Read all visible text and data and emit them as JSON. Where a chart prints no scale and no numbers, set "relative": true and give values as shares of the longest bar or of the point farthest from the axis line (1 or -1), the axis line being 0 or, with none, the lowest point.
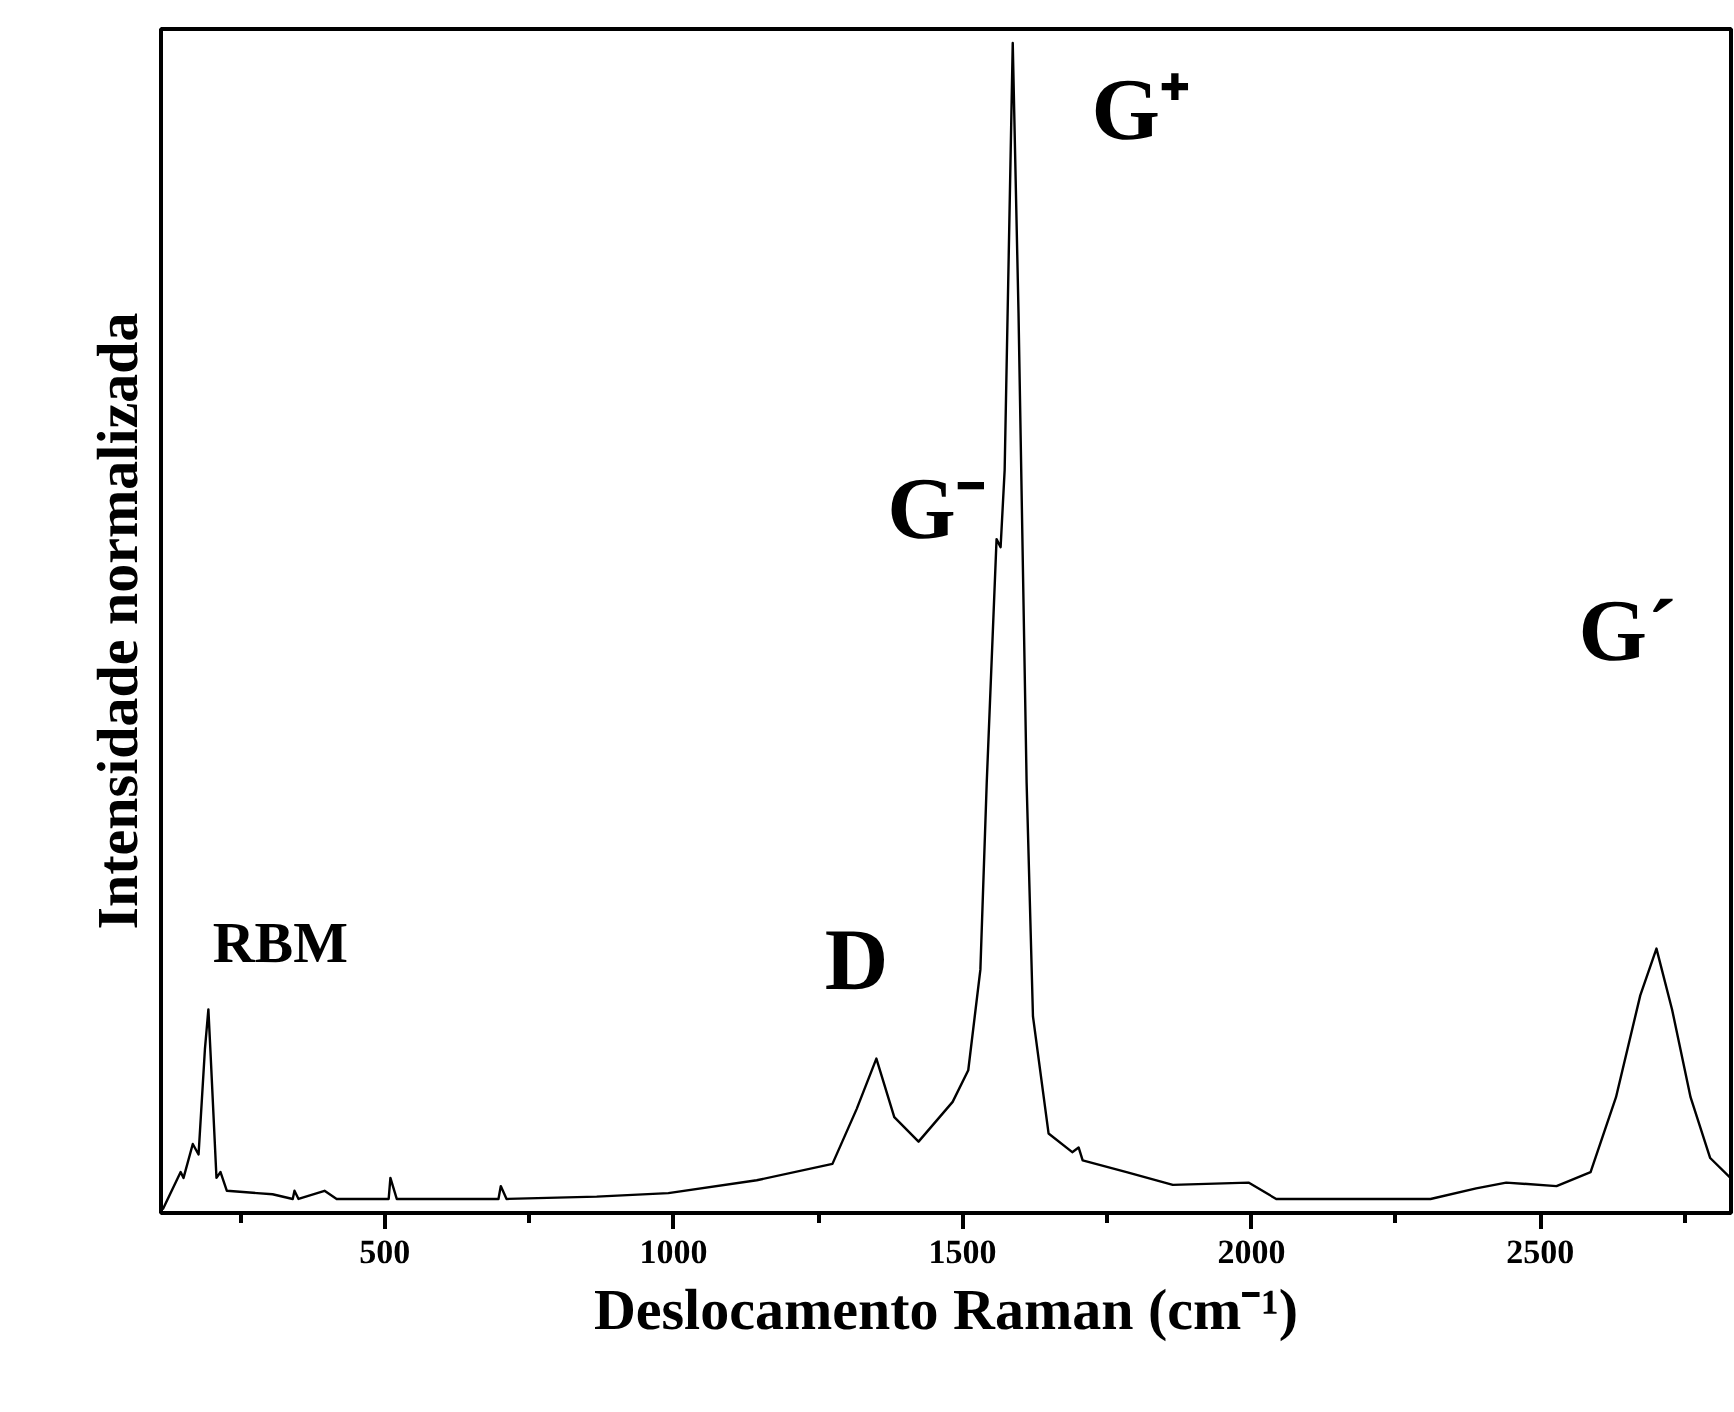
{
  "chart_data": {
    "type": "line",
    "xlabel": "Deslocamento Raman (cm⁻¹)",
    "ylabel": "Intensidade normalizada",
    "relative": true,
    "xlim": [
      113,
      2830
    ],
    "xticks": [
      {
        "value": 250,
        "label": null
      },
      500,
      {
        "value": 750,
        "label": null
      },
      1000,
      {
        "value": 1250,
        "label": null
      },
      1500,
      {
        "value": 1750,
        "label": null
      },
      2000,
      {
        "value": 2250,
        "label": null
      },
      2500,
      {
        "value": 2750,
        "label": null
      }
    ],
    "grid": false,
    "marker": "none",
    "line_style": "solid",
    "series": [
      {
        "color": "#000000",
        "x": [
          116,
          147,
          152,
          168,
          178,
          189,
          195,
          199,
          209,
          216,
          227,
          279,
          306,
          341,
          344,
          351,
          396,
          417,
          507,
          510,
          521,
          697,
          701,
          711,
          867,
          991,
          1144,
          1275,
          1317,
          1351,
          1382,
          1424,
          1483,
          1510,
          1531,
          1542,
          1559,
          1566,
          1573,
          1587,
          1597,
          1611,
          1622,
          1649,
          1690,
          1701,
          1708,
          1784,
          1864,
          1995,
          2043,
          2310,
          2389,
          2441,
          2528,
          2587,
          2631,
          2673,
          2701,
          2728,
          2760,
          2794,
          2829
        ],
        "values": [
          0.003,
          0.035,
          0.03,
          0.059,
          0.05,
          0.14,
          0.174,
          0.134,
          0.03,
          0.035,
          0.019,
          0.017,
          0.016,
          0.012,
          0.019,
          0.012,
          0.019,
          0.012,
          0.012,
          0.03,
          0.012,
          0.012,
          0.023,
          0.012,
          0.014,
          0.017,
          0.028,
          0.042,
          0.089,
          0.132,
          0.082,
          0.061,
          0.095,
          0.122,
          0.208,
          0.368,
          0.576,
          0.569,
          0.635,
          1.0,
          0.769,
          0.368,
          0.168,
          0.068,
          0.052,
          0.056,
          0.045,
          0.035,
          0.024,
          0.026,
          0.012,
          0.012,
          0.021,
          0.026,
          0.023,
          0.035,
          0.099,
          0.186,
          0.226,
          0.174,
          0.099,
          0.047,
          0.03
        ]
      }
    ],
    "annotations": [
      "RBM",
      "D",
      "G⁻",
      "G⁺",
      "G´"
    ]
  }
}
